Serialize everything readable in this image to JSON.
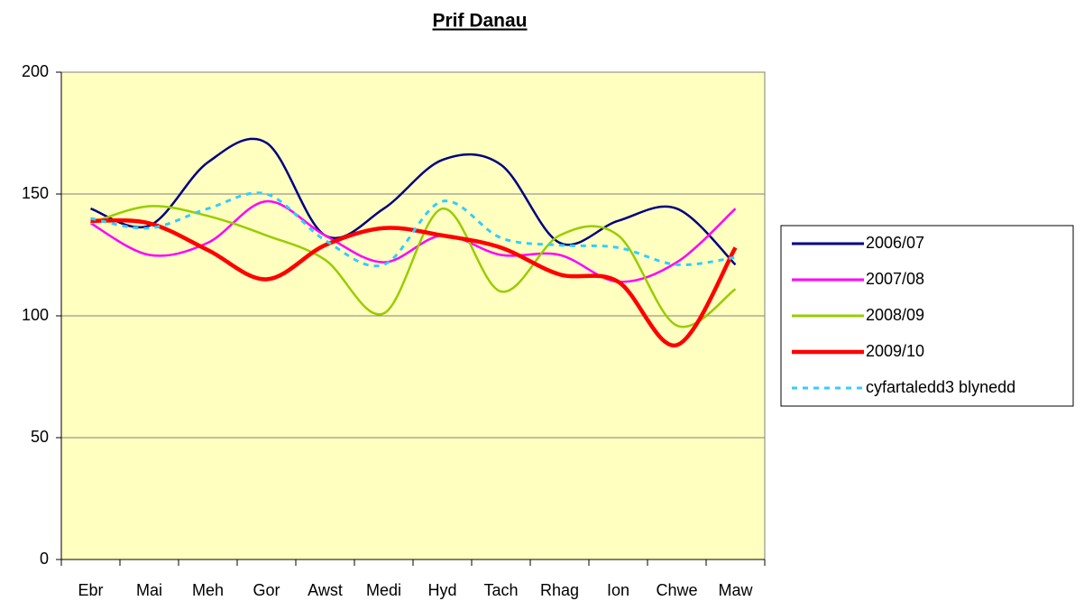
{
  "chart_data": {
    "type": "line",
    "title": "Prif Danau",
    "categories": [
      "Ebr",
      "Mai",
      "Meh",
      "Gor",
      "Awst",
      "Medi",
      "Hyd",
      "Tach",
      "Rhag",
      "Ion",
      "Chwe",
      "Maw"
    ],
    "series": [
      {
        "name": "2006/07",
        "color": "#000080",
        "values": [
          144,
          137,
          163,
          171,
          133,
          144,
          164,
          162,
          130,
          139,
          144,
          121
        ]
      },
      {
        "name": "2007/08",
        "color": "#ff00ff",
        "values": [
          138,
          125,
          130,
          147,
          133,
          122,
          133,
          125,
          125,
          114,
          122,
          144
        ]
      },
      {
        "name": "2008/09",
        "color": "#99cc00",
        "values": [
          138,
          145,
          141,
          133,
          123,
          101,
          144,
          110,
          133,
          133,
          96,
          111
        ]
      },
      {
        "name": "2009/10",
        "color": "#ff0000",
        "values": [
          139,
          138,
          127,
          115,
          129,
          136,
          133,
          128,
          117,
          114,
          88,
          128
        ]
      },
      {
        "name": "cyfartaledd3 blynedd",
        "color": "#33ccff",
        "dashed": true,
        "values": [
          140,
          136,
          144,
          150,
          131,
          121,
          147,
          132,
          129,
          128,
          121,
          124
        ]
      }
    ],
    "ylim": [
      0,
      200
    ],
    "yticks": [
      0,
      50,
      100,
      150,
      200
    ],
    "grid": true,
    "legend": "right"
  }
}
